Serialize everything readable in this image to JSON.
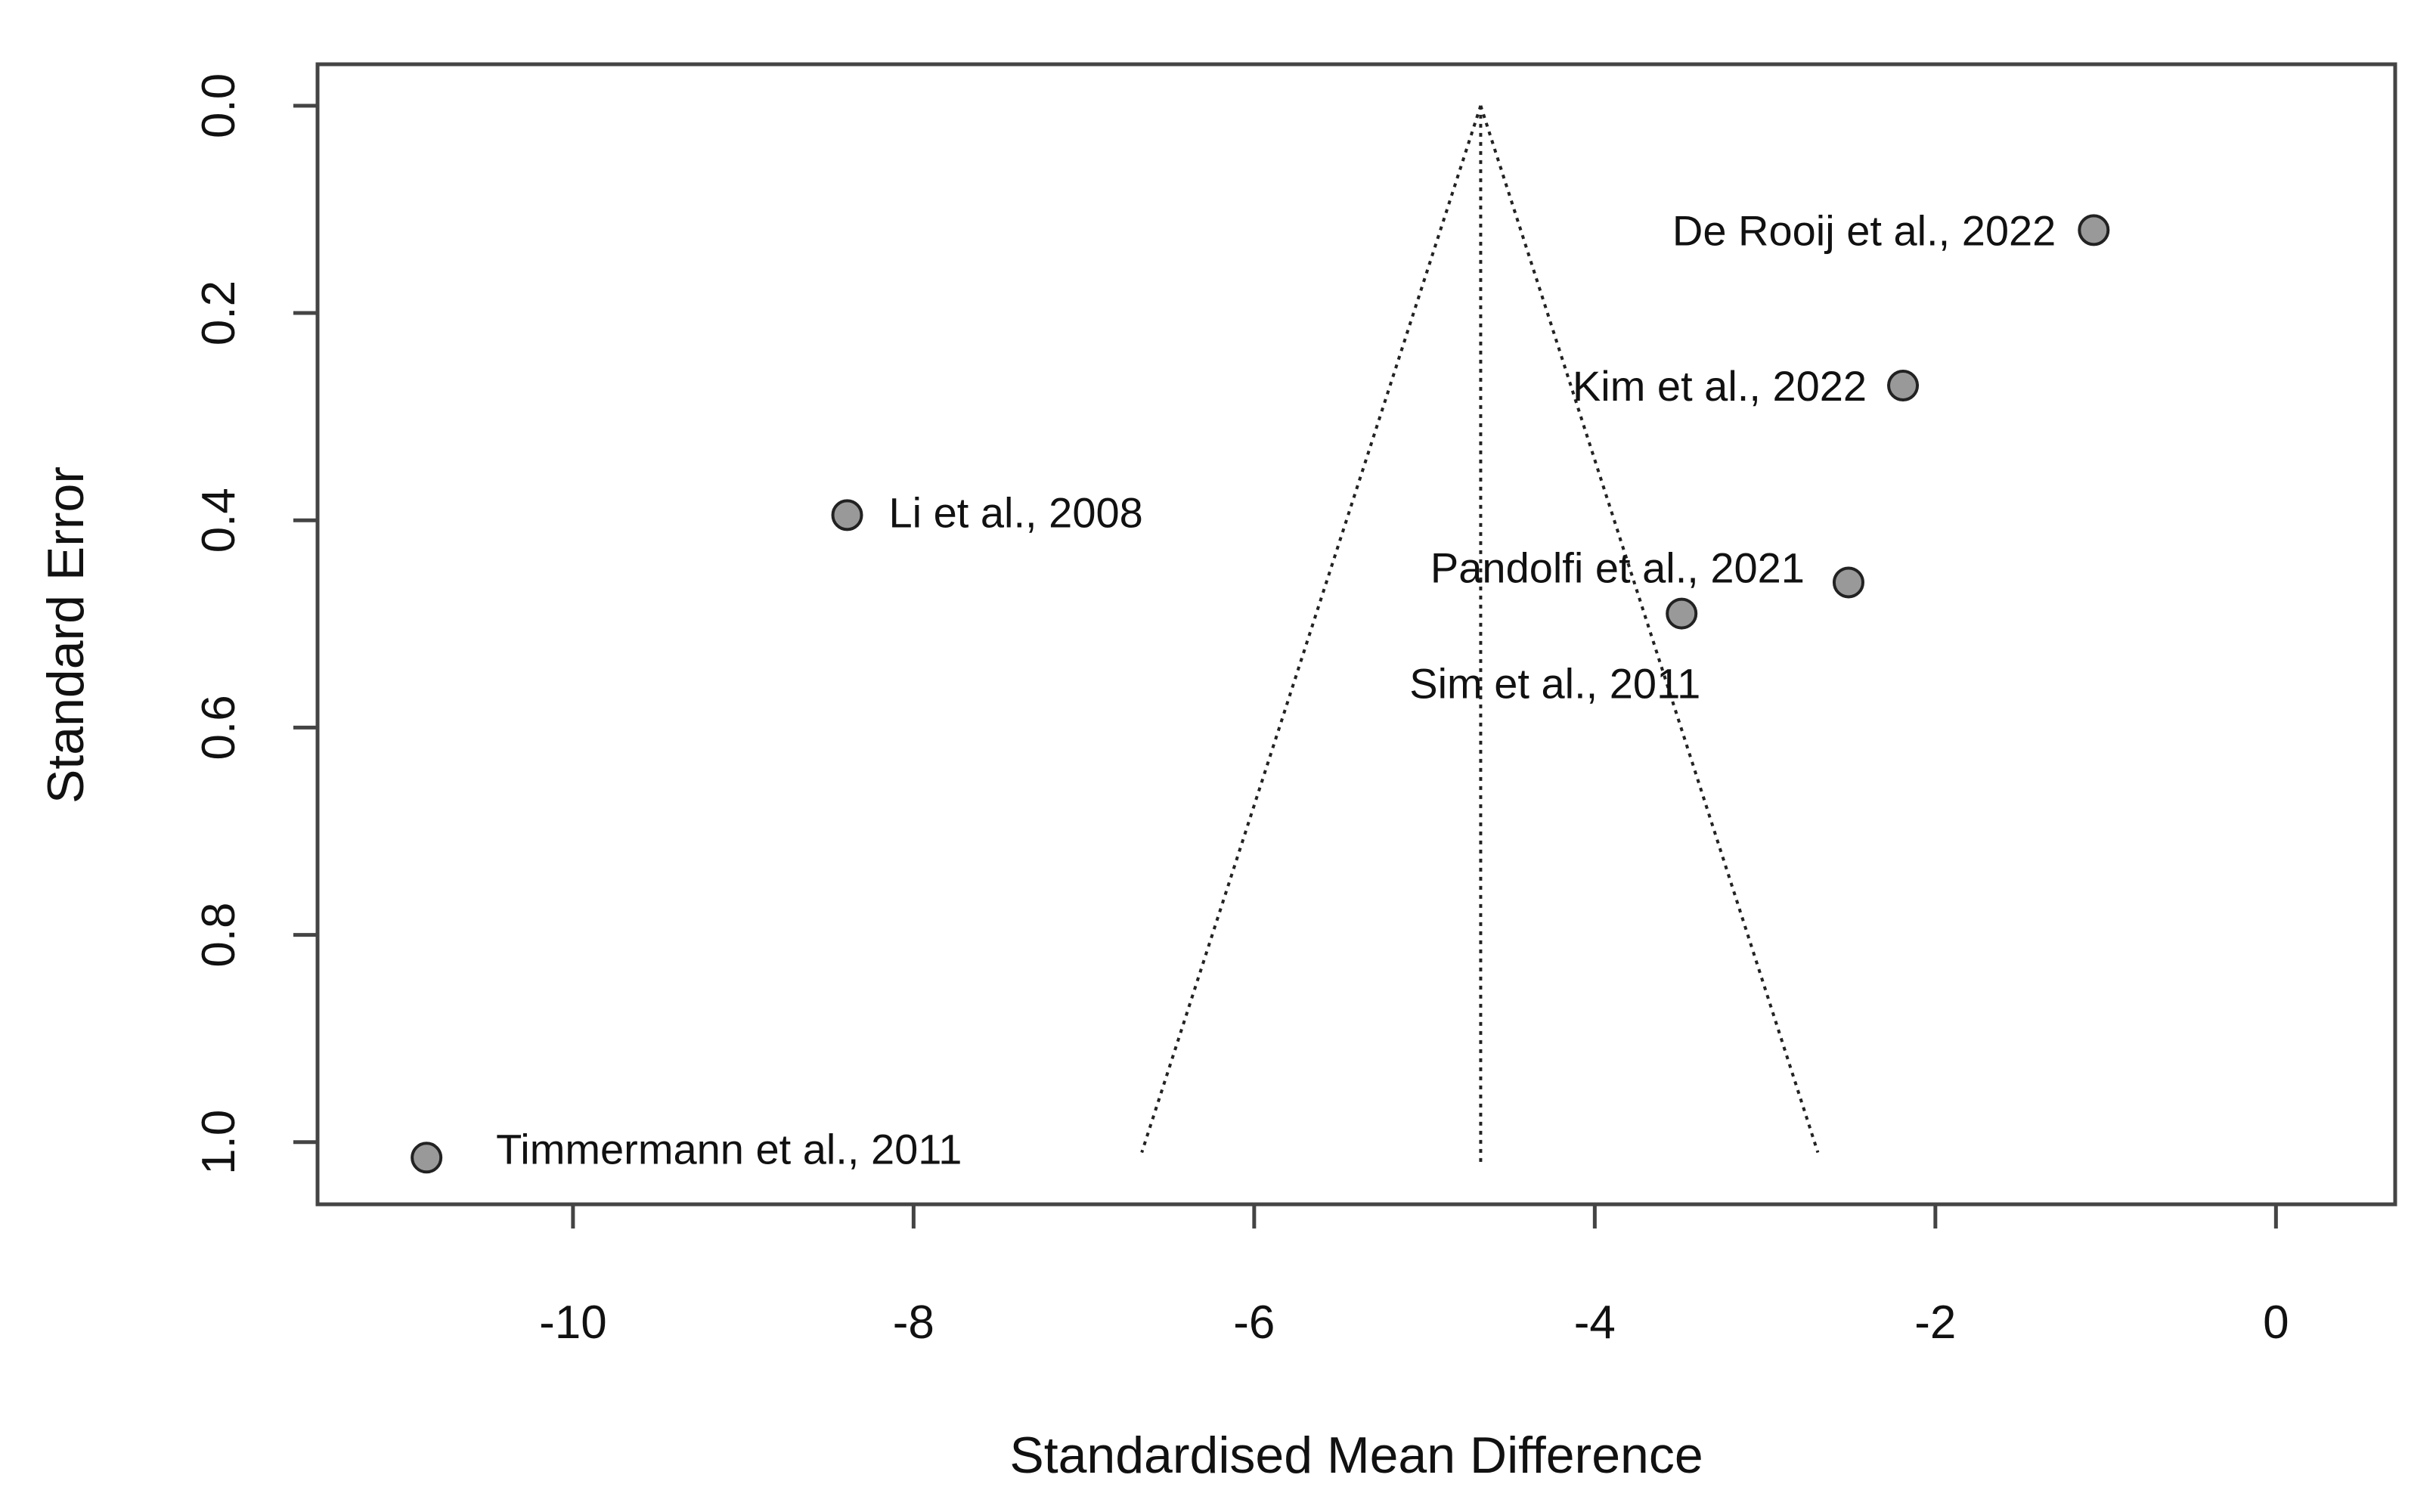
{
  "chart_data": {
    "type": "scatter",
    "subtype": "funnel-plot",
    "title": "",
    "xlabel": "Standardised Mean Difference",
    "ylabel": "Standard Error",
    "xlim": [
      -11.5,
      0.7
    ],
    "ylim": [
      1.06,
      -0.04
    ],
    "y_reversed": true,
    "x_ticks": [
      -10,
      -8,
      -6,
      -4,
      -2,
      0
    ],
    "x_tick_labels": [
      "-10",
      "-8",
      "-6",
      "-4",
      "-2",
      "0"
    ],
    "y_ticks": [
      0.0,
      0.2,
      0.4,
      0.6,
      0.8,
      1.0
    ],
    "y_tick_labels": [
      "0.0",
      "0.2",
      "0.4",
      "0.6",
      "0.8",
      "1.0"
    ],
    "grid": false,
    "legend": "none",
    "pooled_estimate": -4.67,
    "funnel": {
      "apex": [
        -4.67,
        0.0
      ],
      "left_base": [
        -6.66,
        1.01
      ],
      "right_base": [
        -2.69,
        1.01
      ],
      "center_line_bottom_se": 1.02
    },
    "points": [
      {
        "label": "De Rooij et al., 2022",
        "x": -1.07,
        "y": 0.12
      },
      {
        "label": "Kim et al., 2022",
        "x": -2.19,
        "y": 0.27
      },
      {
        "label": "Li et al., 2008",
        "x": -8.39,
        "y": 0.395
      },
      {
        "label": "Pandolfi et al., 2021",
        "x": -2.51,
        "y": 0.46
      },
      {
        "label": "Sim et al., 2011",
        "x": -3.49,
        "y": 0.49
      },
      {
        "label": "Timmermann et al., 2011",
        "x": -10.86,
        "y": 1.015
      }
    ],
    "colors": {
      "point_fill": "#999999",
      "point_stroke": "#222222",
      "axis": "#444444",
      "text": "#111111"
    }
  }
}
